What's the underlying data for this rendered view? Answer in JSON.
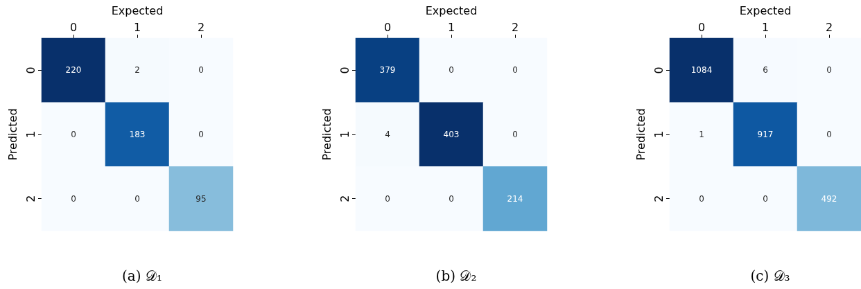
{
  "chart_data": [
    {
      "type": "heatmap",
      "title": "(a) 𝒟₁",
      "xlabel": "Expected",
      "ylabel": "Predicted",
      "categories": [
        "0",
        "1",
        "2"
      ],
      "y_categories": [
        "0",
        "1",
        "2"
      ],
      "cells": [
        [
          220,
          2,
          0
        ],
        [
          0,
          183,
          0
        ],
        [
          0,
          0,
          95
        ]
      ],
      "data_labels": true
    },
    {
      "type": "heatmap",
      "title": "(b) 𝒟₂",
      "xlabel": "Expected",
      "ylabel": "Predicted",
      "categories": [
        "0",
        "1",
        "2"
      ],
      "y_categories": [
        "0",
        "1",
        "2"
      ],
      "cells": [
        [
          379,
          0,
          0
        ],
        [
          4,
          403,
          0
        ],
        [
          0,
          0,
          214
        ]
      ],
      "data_labels": true
    },
    {
      "type": "heatmap",
      "title": "(c) 𝒟₃",
      "xlabel": "Expected",
      "ylabel": "Predicted",
      "categories": [
        "0",
        "1",
        "2"
      ],
      "y_categories": [
        "0",
        "1",
        "2"
      ],
      "cells": [
        [
          1084,
          6,
          0
        ],
        [
          1,
          917,
          0
        ],
        [
          0,
          0,
          492
        ]
      ],
      "data_labels": true
    }
  ]
}
